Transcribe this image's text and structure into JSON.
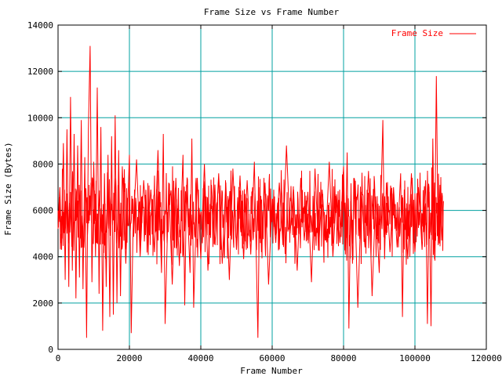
{
  "chart_data": {
    "type": "line",
    "title": "Frame Size vs Frame Number",
    "xlabel": "Frame Number",
    "ylabel": "Frame Size (Bytes)",
    "xlim": [
      0,
      120000
    ],
    "ylim": [
      0,
      14000
    ],
    "x_ticks": [
      0,
      20000,
      40000,
      60000,
      80000,
      100000,
      120000
    ],
    "y_ticks": [
      0,
      2000,
      4000,
      6000,
      8000,
      10000,
      12000,
      14000
    ],
    "grid": true,
    "legend_position": "top-right",
    "series": [
      {
        "name": "Frame Size",
        "color": "#ff0000",
        "x_range": [
          0,
          108000
        ],
        "points": [
          [
            0,
            5200
          ],
          [
            500,
            7000
          ],
          [
            1000,
            4300
          ],
          [
            1500,
            8900
          ],
          [
            2000,
            3000
          ],
          [
            2500,
            9500
          ],
          [
            3000,
            2700
          ],
          [
            3500,
            10900
          ],
          [
            4000,
            3400
          ],
          [
            4500,
            9300
          ],
          [
            5000,
            2200
          ],
          [
            5500,
            8800
          ],
          [
            6000,
            3100
          ],
          [
            6500,
            9900
          ],
          [
            7000,
            2600
          ],
          [
            7500,
            8300
          ],
          [
            8000,
            500
          ],
          [
            8500,
            9500
          ],
          [
            9000,
            13100
          ],
          [
            9500,
            2900
          ],
          [
            10000,
            8100
          ],
          [
            10500,
            4000
          ],
          [
            11000,
            11300
          ],
          [
            11500,
            2400
          ],
          [
            12000,
            9600
          ],
          [
            12500,
            800
          ],
          [
            13000,
            7600
          ],
          [
            13500,
            2700
          ],
          [
            14000,
            8400
          ],
          [
            14500,
            1400
          ],
          [
            15000,
            9200
          ],
          [
            15500,
            1500
          ],
          [
            16000,
            10100
          ],
          [
            16500,
            2000
          ],
          [
            17000,
            8600
          ],
          [
            17500,
            2300
          ],
          [
            18000,
            7900
          ],
          [
            19000,
            3700
          ],
          [
            20000,
            8400
          ],
          [
            20500,
            700
          ],
          [
            21000,
            5100
          ],
          [
            22000,
            8200
          ],
          [
            23000,
            4000
          ],
          [
            24000,
            7300
          ],
          [
            25000,
            4800
          ],
          [
            26000,
            6900
          ],
          [
            27000,
            4200
          ],
          [
            28000,
            8600
          ],
          [
            29000,
            3300
          ],
          [
            29500,
            9300
          ],
          [
            30000,
            1100
          ],
          [
            31000,
            7200
          ],
          [
            32000,
            2800
          ],
          [
            33000,
            7400
          ],
          [
            34000,
            3600
          ],
          [
            35000,
            8400
          ],
          [
            35500,
            1900
          ],
          [
            36000,
            7100
          ],
          [
            37000,
            3300
          ],
          [
            37500,
            9100
          ],
          [
            38000,
            1800
          ],
          [
            39000,
            7400
          ],
          [
            40000,
            3900
          ],
          [
            41000,
            8000
          ],
          [
            42000,
            3400
          ],
          [
            43000,
            7100
          ],
          [
            44000,
            4500
          ],
          [
            45000,
            7600
          ],
          [
            46000,
            3700
          ],
          [
            47000,
            7200
          ],
          [
            48000,
            3000
          ],
          [
            49000,
            7800
          ],
          [
            50000,
            4300
          ],
          [
            51000,
            7500
          ],
          [
            52000,
            3900
          ],
          [
            53000,
            7300
          ],
          [
            54000,
            4100
          ],
          [
            55000,
            8100
          ],
          [
            56000,
            500
          ],
          [
            56500,
            7000
          ],
          [
            57000,
            4200
          ],
          [
            58000,
            7200
          ],
          [
            59000,
            2800
          ],
          [
            60000,
            6500
          ],
          [
            61000,
            4600
          ],
          [
            62000,
            7200
          ],
          [
            63000,
            4500
          ],
          [
            64000,
            8800
          ],
          [
            65000,
            5000
          ],
          [
            66000,
            6900
          ],
          [
            67000,
            3400
          ],
          [
            68000,
            7400
          ],
          [
            69000,
            4700
          ],
          [
            70000,
            6800
          ],
          [
            71000,
            2900
          ],
          [
            72000,
            7800
          ],
          [
            73000,
            4300
          ],
          [
            74000,
            6900
          ],
          [
            75000,
            4700
          ],
          [
            76000,
            8100
          ],
          [
            77000,
            4000
          ],
          [
            78000,
            6700
          ],
          [
            79000,
            4600
          ],
          [
            80000,
            7900
          ],
          [
            80500,
            4100
          ],
          [
            81000,
            8500
          ],
          [
            81500,
            900
          ],
          [
            82000,
            6400
          ],
          [
            82500,
            3700
          ],
          [
            83000,
            7400
          ],
          [
            84000,
            1800
          ],
          [
            85000,
            6800
          ],
          [
            86000,
            4400
          ],
          [
            87000,
            7700
          ],
          [
            88000,
            2300
          ],
          [
            89000,
            6600
          ],
          [
            90000,
            3300
          ],
          [
            91000,
            9900
          ],
          [
            91500,
            3900
          ],
          [
            92000,
            7200
          ],
          [
            93000,
            4200
          ],
          [
            94000,
            7000
          ],
          [
            95000,
            4400
          ],
          [
            96000,
            7600
          ],
          [
            96500,
            1400
          ],
          [
            97000,
            6900
          ],
          [
            98000,
            3900
          ],
          [
            99000,
            7600
          ],
          [
            100000,
            4200
          ],
          [
            101000,
            7000
          ],
          [
            102000,
            4300
          ],
          [
            103000,
            7300
          ],
          [
            103500,
            1100
          ],
          [
            104000,
            6800
          ],
          [
            104500,
            1000
          ],
          [
            105000,
            9100
          ],
          [
            105500,
            3900
          ],
          [
            106000,
            11800
          ],
          [
            106500,
            4500
          ],
          [
            107000,
            7100
          ],
          [
            107500,
            4700
          ],
          [
            108000,
            6400
          ]
        ]
      }
    ]
  }
}
